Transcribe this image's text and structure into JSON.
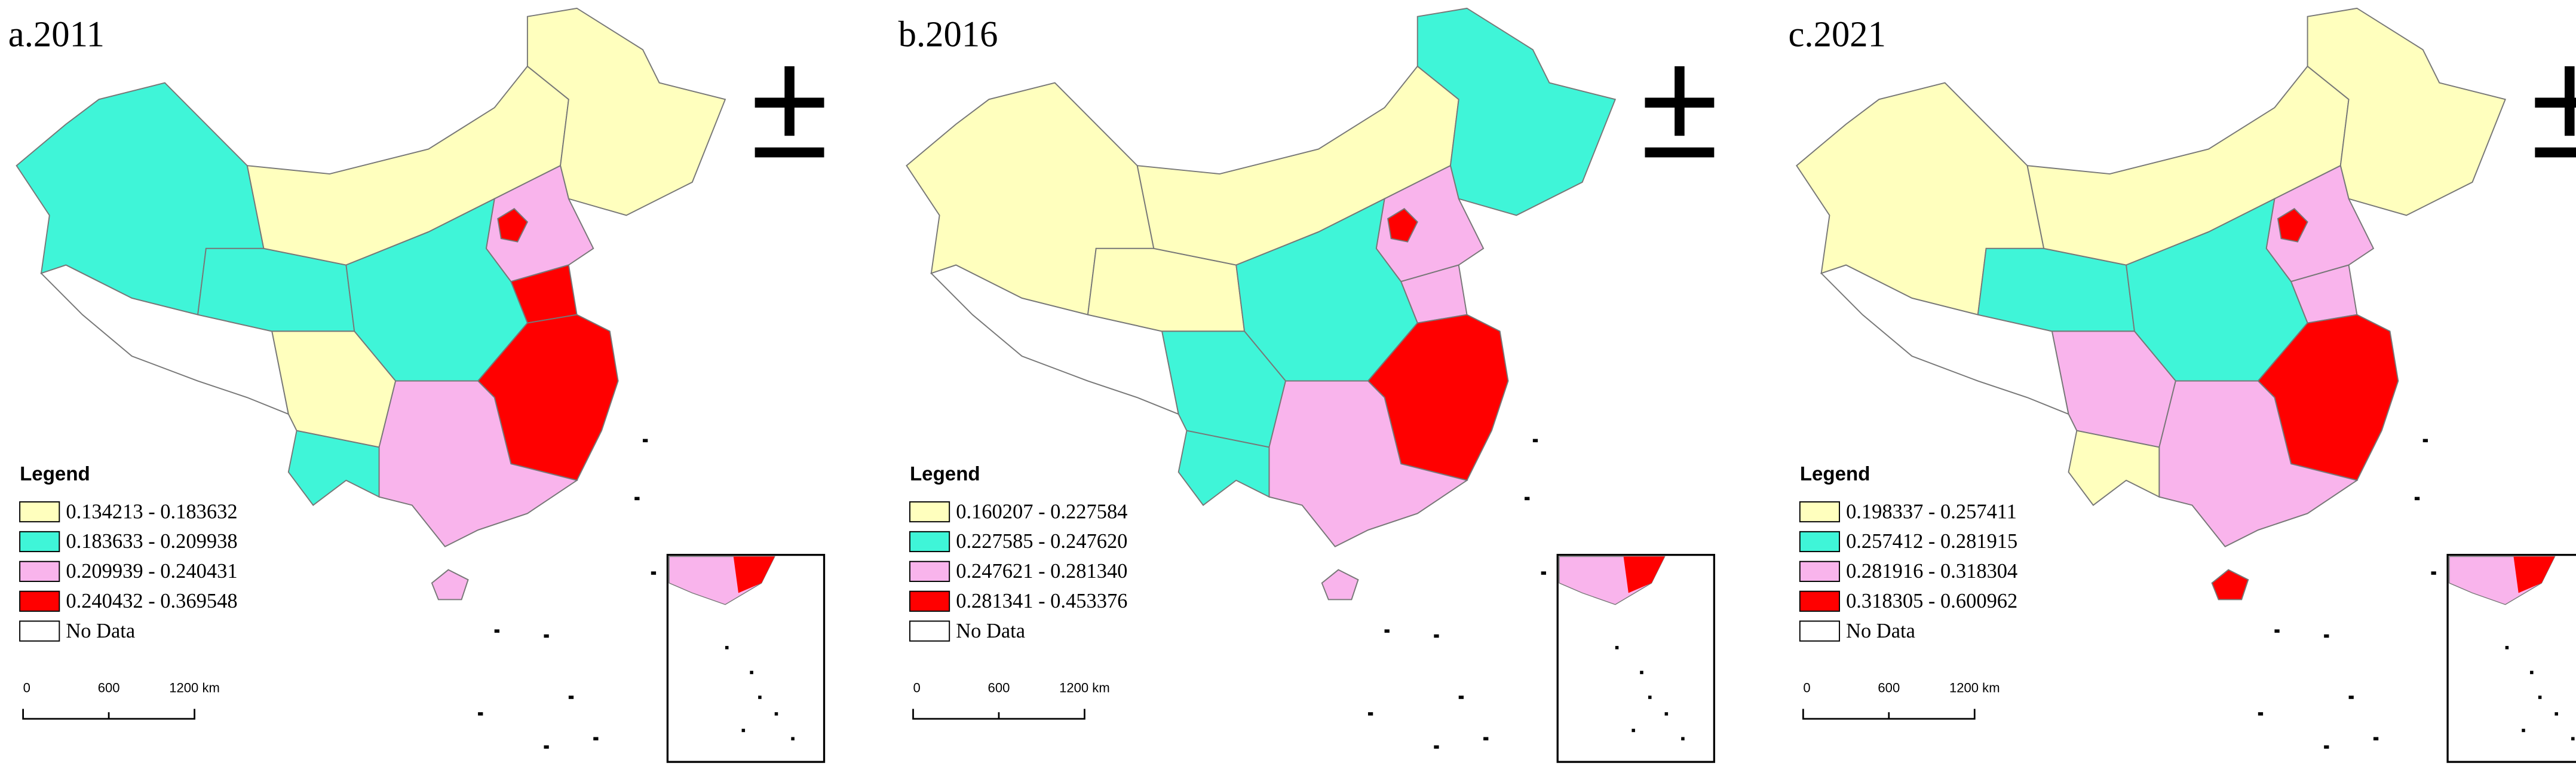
{
  "panels": [
    {
      "title": "a.2011",
      "legend": {
        "title": "Legend",
        "items": [
          {
            "label": "0.134213 - 0.183632",
            "color": "#ffffbe"
          },
          {
            "label": "0.183633 - 0.209938",
            "color": "#3ff5d8"
          },
          {
            "label": "0.209939 - 0.240431",
            "color": "#f9b4ec"
          },
          {
            "label": "0.240432 - 0.369548",
            "color": "#ff0000"
          },
          {
            "label": "No Data",
            "color": "#ffffff"
          }
        ]
      },
      "scale_bar": {
        "labels": [
          "0",
          "600",
          "1200 km"
        ]
      }
    },
    {
      "title": "b.2016",
      "legend": {
        "title": "Legend",
        "items": [
          {
            "label": "0.160207 - 0.227584",
            "color": "#ffffbe"
          },
          {
            "label": "0.227585 - 0.247620",
            "color": "#3ff5d8"
          },
          {
            "label": "0.247621 - 0.281340",
            "color": "#f9b4ec"
          },
          {
            "label": "0.281341 - 0.453376",
            "color": "#ff0000"
          },
          {
            "label": "No Data",
            "color": "#ffffff"
          }
        ]
      },
      "scale_bar": {
        "labels": [
          "0",
          "600",
          "1200 km"
        ]
      }
    },
    {
      "title": "c.2021",
      "legend": {
        "title": "Legend",
        "items": [
          {
            "label": "0.198337 - 0.257411",
            "color": "#ffffbe"
          },
          {
            "label": "0.257412 - 0.281915",
            "color": "#3ff5d8"
          },
          {
            "label": "0.281916 - 0.318304",
            "color": "#f9b4ec"
          },
          {
            "label": "0.318305 - 0.600962",
            "color": "#ff0000"
          },
          {
            "label": "No Data",
            "color": "#ffffff"
          }
        ]
      },
      "scale_bar": {
        "labels": [
          "0",
          "600",
          "1200 km"
        ]
      }
    }
  ]
}
